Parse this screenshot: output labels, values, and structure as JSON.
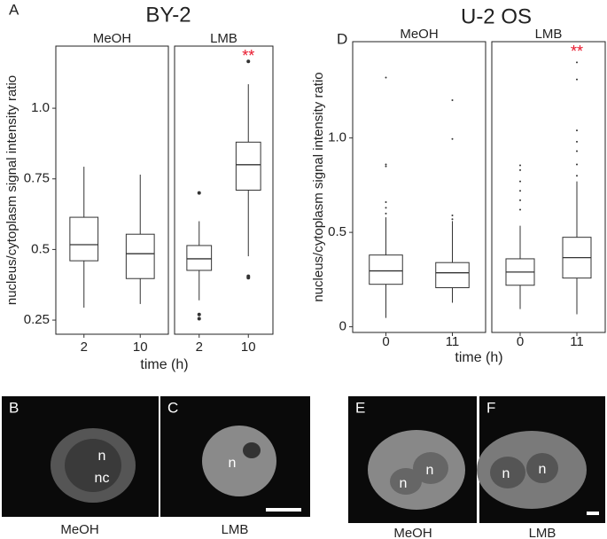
{
  "chart_data": [
    {
      "type": "box",
      "panel_label": "A",
      "title": "BY-2",
      "ylabel": "nucleus/cytoplasm signal intensity ratio",
      "xlabel": "time (h)",
      "ylim": [
        0.2,
        1.22
      ],
      "yticks": [
        0.25,
        0.5,
        0.75,
        {
          "value": 1,
          "label": "1.0"
        }
      ],
      "annotation": {
        "text": "**",
        "color": "#e8162b"
      },
      "facets": [
        {
          "name": "MeOH",
          "categories": [
            "2",
            "10"
          ],
          "boxes": [
            {
              "min": 0.294,
              "q1": 0.46,
              "median": 0.517,
              "q3": 0.614,
              "max": 0.793,
              "outliers": []
            },
            {
              "min": 0.307,
              "q1": 0.397,
              "median": 0.485,
              "q3": 0.554,
              "max": 0.765,
              "outliers": []
            }
          ]
        },
        {
          "name": "LMB",
          "categories": [
            "2",
            "10"
          ],
          "boxes": [
            {
              "min": 0.32,
              "q1": 0.426,
              "median": 0.467,
              "q3": 0.514,
              "max": 0.6,
              "outliers": [
                0.7,
                0.27,
                0.255
              ]
            },
            {
              "min": 0.476,
              "q1": 0.71,
              "median": 0.8,
              "q3": 0.88,
              "max": 1.085,
              "outliers": [
                0.405,
                0.4,
                1.166
              ]
            }
          ]
        }
      ]
    },
    {
      "type": "box",
      "panel_label": "D",
      "title": "U-2 OS",
      "ylabel": "nucleus/cytoplasm signal intensity ratio",
      "xlabel": "time (h)",
      "ylim": [
        -0.03,
        1.51
      ],
      "yticks": [
        0,
        0.5,
        {
          "value": 1,
          "label": "1.0"
        }
      ],
      "annotation": {
        "text": "**",
        "color": "#e8162b"
      },
      "facets": [
        {
          "name": "MeOH",
          "categories": [
            "0",
            "11"
          ],
          "boxes": [
            {
              "min": 0.047,
              "q1": 0.225,
              "median": 0.296,
              "q3": 0.38,
              "max": 0.58,
              "outliers": [
                1.32,
                0.86,
                0.85,
                0.66,
                0.63,
                0.6
              ]
            },
            {
              "min": 0.127,
              "q1": 0.207,
              "median": 0.286,
              "q3": 0.34,
              "max": 0.56,
              "outliers": [
                1.2,
                0.995,
                0.59,
                0.57
              ]
            }
          ]
        },
        {
          "name": "LMB",
          "categories": [
            "0",
            "11"
          ],
          "boxes": [
            {
              "min": 0.094,
              "q1": 0.22,
              "median": 0.29,
              "q3": 0.36,
              "max": 0.535,
              "outliers": [
                0.855,
                0.83,
                0.77,
                0.72,
                0.67,
                0.62
              ]
            },
            {
              "min": 0.066,
              "q1": 0.258,
              "median": 0.366,
              "q3": 0.474,
              "max": 0.77,
              "outliers": [
                1.4,
                1.31,
                1.04,
                0.98,
                0.93,
                0.86,
                0.8
              ]
            }
          ]
        }
      ]
    }
  ],
  "images": [
    {
      "letter": "B",
      "labels": [
        "n",
        "nc"
      ],
      "caption": "MeOH"
    },
    {
      "letter": "C",
      "labels": [
        "n"
      ],
      "caption": "LMB"
    },
    {
      "letter": "E",
      "labels": [
        "n",
        "n"
      ],
      "caption": "MeOH"
    },
    {
      "letter": "F",
      "labels": [
        "n",
        "n"
      ],
      "caption": "LMB"
    }
  ]
}
